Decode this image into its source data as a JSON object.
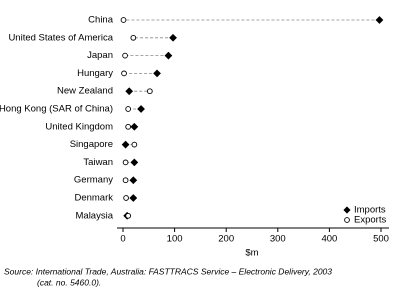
{
  "chart_data": {
    "type": "dot",
    "categories": [
      "China",
      "United States of America",
      "Japan",
      "Hungary",
      "New Zealand",
      "Hong Kong (SAR of China)",
      "United Kingdom",
      "Singapore",
      "Taiwan",
      "Germany",
      "Denmark",
      "Malaysia"
    ],
    "series": [
      {
        "name": "Imports",
        "color": "#000000",
        "marker": "diamond",
        "values": [
          497,
          97,
          88,
          66,
          12,
          35,
          22,
          5,
          22,
          20,
          20,
          8
        ]
      },
      {
        "name": "Exports",
        "color": "#ffffff",
        "marker": "circle",
        "values": [
          1,
          20,
          4,
          2,
          52,
          10,
          10,
          22,
          5,
          5,
          6,
          10
        ]
      }
    ],
    "xlabel": "$m",
    "xlim": [
      0,
      500
    ],
    "xticks": [
      0,
      100,
      200,
      300,
      400,
      500
    ],
    "legend": "lower right",
    "notes": [
      "Source: International Trade, Australia: FASTTRACS Service – Electronic Delivery, 2003",
      "(cat. no. 5460.0)."
    ]
  }
}
